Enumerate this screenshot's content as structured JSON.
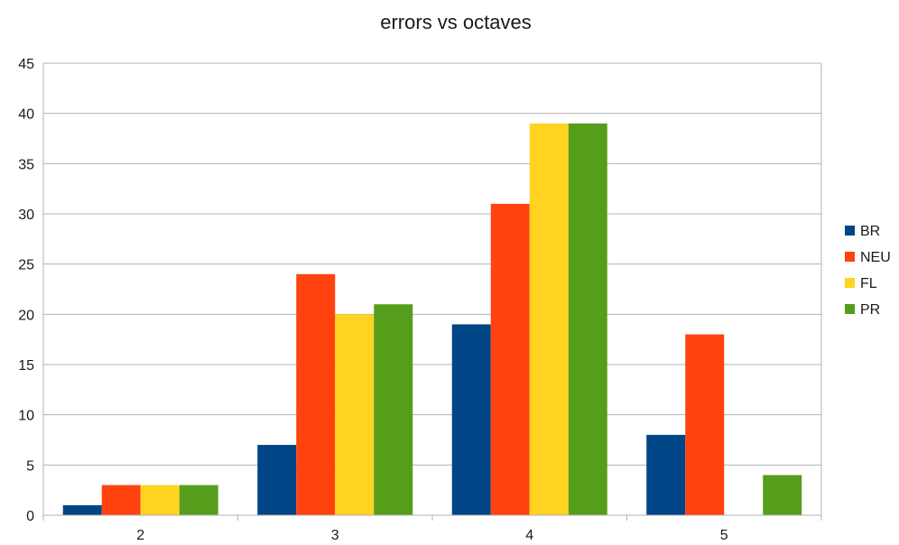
{
  "chart_data": {
    "type": "bar",
    "title": "errors vs octaves",
    "xlabel": "",
    "ylabel": "",
    "categories": [
      "2",
      "3",
      "4",
      "5"
    ],
    "series": [
      {
        "name": "BR",
        "color": "#004586",
        "values": [
          1,
          7,
          19,
          8
        ]
      },
      {
        "name": "NEU",
        "color": "#ff420e",
        "values": [
          3,
          24,
          31,
          18
        ]
      },
      {
        "name": "FL",
        "color": "#ffd320",
        "values": [
          3,
          20,
          39,
          0
        ]
      },
      {
        "name": "PR",
        "color": "#579d1c",
        "values": [
          3,
          21,
          39,
          4
        ]
      }
    ],
    "ylim": [
      0,
      45
    ],
    "yticks": [
      0,
      5,
      10,
      15,
      20,
      25,
      30,
      35,
      40,
      45
    ],
    "grid": true,
    "legend_position": "right"
  }
}
